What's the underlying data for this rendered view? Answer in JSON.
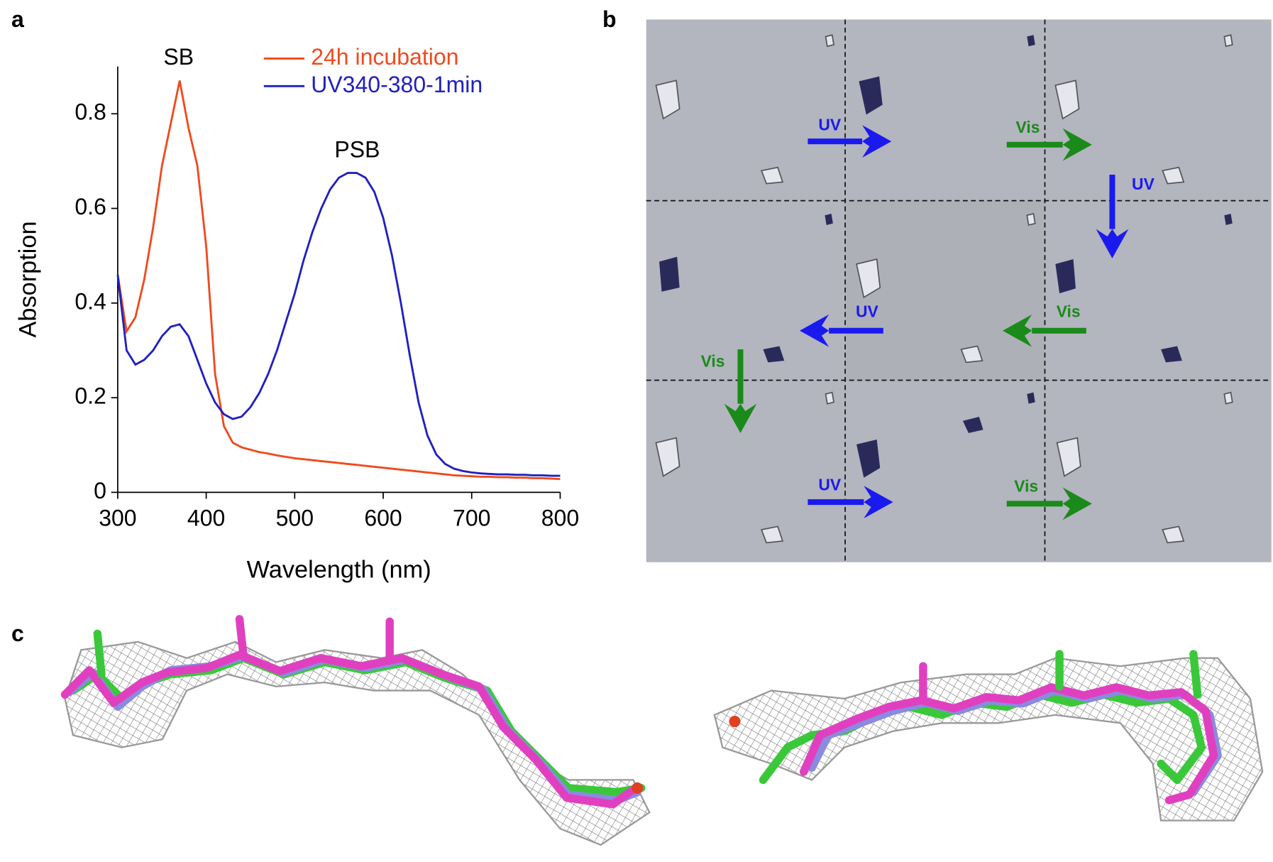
{
  "panel_labels": [
    "a",
    "b",
    "c"
  ],
  "chart_data": {
    "type": "line",
    "x_label": "Wavelength (nm)",
    "y_label": "Absorption",
    "annotations": [
      "SB",
      "PSB"
    ],
    "x": [
      300,
      310,
      320,
      330,
      340,
      350,
      360,
      370,
      380,
      390,
      400,
      410,
      420,
      430,
      440,
      450,
      460,
      470,
      480,
      490,
      500,
      510,
      520,
      530,
      540,
      550,
      560,
      570,
      580,
      590,
      600,
      610,
      620,
      630,
      640,
      650,
      660,
      670,
      680,
      690,
      700,
      710,
      720,
      730,
      740,
      750,
      760,
      770,
      780,
      790,
      800
    ],
    "series": [
      {
        "name": "24h incubation",
        "color": "#f04a1e",
        "values": [
          0.46,
          0.34,
          0.37,
          0.45,
          0.56,
          0.69,
          0.78,
          0.87,
          0.77,
          0.69,
          0.52,
          0.25,
          0.14,
          0.105,
          0.095,
          0.09,
          0.085,
          0.082,
          0.078,
          0.075,
          0.072,
          0.07,
          0.068,
          0.066,
          0.064,
          0.062,
          0.06,
          0.058,
          0.056,
          0.054,
          0.052,
          0.05,
          0.048,
          0.046,
          0.044,
          0.042,
          0.04,
          0.038,
          0.036,
          0.035,
          0.034,
          0.033,
          0.033,
          0.032,
          0.032,
          0.031,
          0.031,
          0.03,
          0.03,
          0.029,
          0.028
        ]
      },
      {
        "name": "UV340-380-1min",
        "color": "#2020c0",
        "values": [
          0.46,
          0.3,
          0.27,
          0.28,
          0.3,
          0.33,
          0.35,
          0.355,
          0.33,
          0.28,
          0.23,
          0.19,
          0.165,
          0.155,
          0.16,
          0.18,
          0.21,
          0.25,
          0.3,
          0.36,
          0.42,
          0.49,
          0.55,
          0.6,
          0.64,
          0.665,
          0.675,
          0.675,
          0.665,
          0.635,
          0.58,
          0.5,
          0.4,
          0.29,
          0.19,
          0.12,
          0.08,
          0.06,
          0.05,
          0.045,
          0.042,
          0.04,
          0.039,
          0.038,
          0.038,
          0.037,
          0.037,
          0.036,
          0.036,
          0.035,
          0.035
        ]
      }
    ],
    "xlim": [
      300,
      800
    ],
    "ylim": [
      0,
      0.9
    ],
    "xticks": [
      300,
      400,
      500,
      600,
      700,
      800
    ],
    "yticks": [
      0,
      0.2,
      0.4,
      0.6,
      0.8
    ],
    "legend": "top-right",
    "grid": false
  },
  "panel_b": {
    "arrows": [
      {
        "label": "UV"
      },
      {
        "label": "Vis"
      },
      {
        "label": "UV"
      },
      {
        "label": "UV"
      },
      {
        "label": "Vis"
      },
      {
        "label": "Vis"
      },
      {
        "label": "UV"
      },
      {
        "label": "Vis"
      }
    ]
  }
}
